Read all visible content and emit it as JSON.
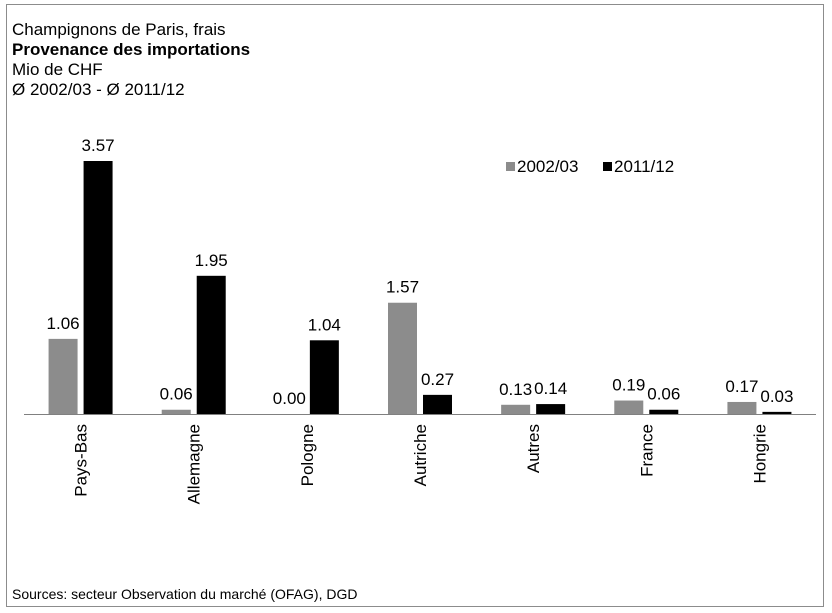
{
  "header": {
    "line1": "Champignons de Paris, frais",
    "line2": "Provenance des importations",
    "line3": "Mio de CHF",
    "line4": "Ø 2002/03 - Ø 2011/12"
  },
  "source": "Sources: secteur Observation du marché (OFAG), DGD",
  "colors": {
    "series1": "#8c8c8c",
    "series2": "#000000",
    "axis": "#808080"
  },
  "chart_data": {
    "type": "bar",
    "title": "Champignons de Paris, frais",
    "subtitle": "Provenance des importations",
    "ylabel": "Mio de CHF",
    "xlabel": "",
    "ylim": [
      0,
      3.57
    ],
    "grid": false,
    "legend": "top-right",
    "categories": [
      "Pays-Bas",
      "Allemagne",
      "Pologne",
      "Autriche",
      "Autres",
      "France",
      "Hongrie"
    ],
    "series": [
      {
        "name": "2002/03",
        "values": [
          1.06,
          0.06,
          0.0,
          1.57,
          0.13,
          0.19,
          0.17
        ],
        "labels": [
          "1.06",
          "0.06",
          "0.00",
          "1.57",
          "0.13",
          "0.19",
          "0.17"
        ]
      },
      {
        "name": "2011/12",
        "values": [
          3.57,
          1.95,
          1.04,
          0.27,
          0.14,
          0.06,
          0.03
        ],
        "labels": [
          "3.57",
          "1.95",
          "1.04",
          "0.27",
          "0.14",
          "0.06",
          "0.03"
        ]
      }
    ]
  }
}
